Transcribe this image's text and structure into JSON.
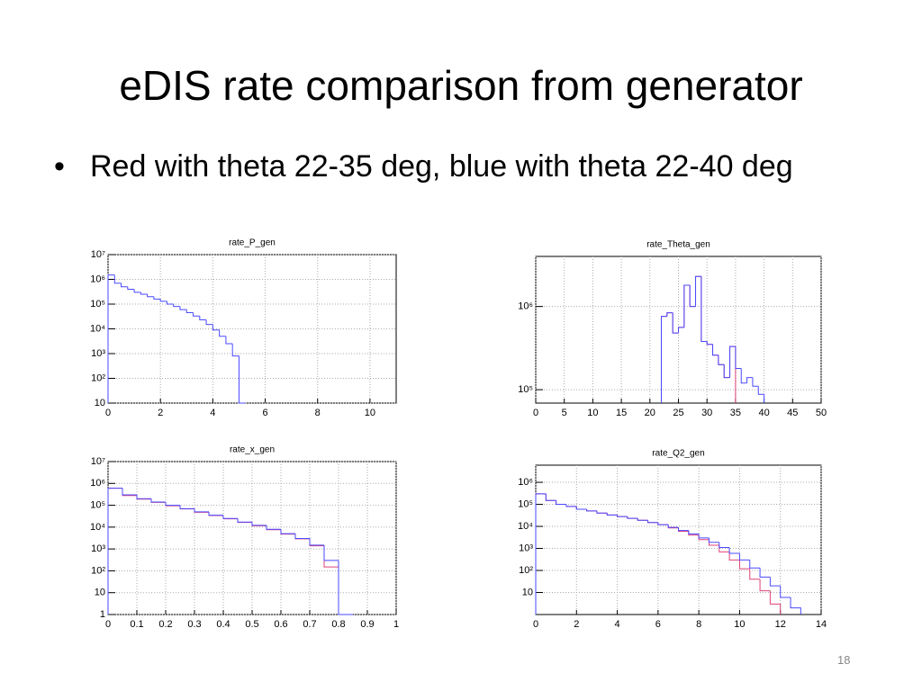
{
  "title": "eDIS rate comparison from generator",
  "bullet": "Red with theta 22-35 deg, blue with theta 22-40 deg",
  "page_number": "18",
  "chart_data": [
    {
      "type": "histogram",
      "title": "rate_P_gen",
      "log_y": true,
      "grid": true,
      "xlim": [
        0,
        11
      ],
      "xticks": [
        0,
        2,
        4,
        6,
        8,
        10
      ],
      "ylim": [
        10,
        10000000
      ],
      "yticks": [
        10,
        {
          "value": 100,
          "label": "10²"
        },
        {
          "value": 1000,
          "label": "10³"
        },
        {
          "value": 10000,
          "label": "10⁴"
        },
        {
          "value": 100000,
          "label": "10⁵"
        },
        {
          "value": 1000000,
          "label": "10⁶"
        },
        {
          "value": 10000000,
          "label": "10⁷"
        }
      ],
      "bins": [
        0,
        0.25,
        0.5,
        0.75,
        1,
        1.25,
        1.5,
        1.75,
        2,
        2.25,
        2.5,
        2.75,
        3,
        3.25,
        3.5,
        3.75,
        4,
        4.25,
        4.5,
        4.75,
        5,
        5.25
      ],
      "series": [
        {
          "color": "#4a4aff",
          "values": [
            1500000,
            700000,
            500000,
            400000,
            300000,
            250000,
            200000,
            160000,
            130000,
            100000,
            80000,
            60000,
            45000,
            33000,
            23000,
            15000,
            9000,
            5000,
            2500,
            800,
            10
          ]
        }
      ]
    },
    {
      "type": "histogram",
      "title": "rate_Theta_gen",
      "log_y": true,
      "grid": true,
      "xlim": [
        0,
        50
      ],
      "xticks": [
        0,
        5,
        10,
        15,
        20,
        25,
        30,
        35,
        40,
        45,
        50
      ],
      "ylim": [
        69000,
        4000000
      ],
      "yticks": [
        {
          "value": 100000,
          "label": "10⁵"
        },
        {
          "value": 1000000,
          "label": "10⁶"
        }
      ],
      "bins": [
        22,
        23,
        24,
        25,
        26,
        27,
        28,
        29,
        30,
        31,
        32,
        33,
        34,
        35,
        36,
        37,
        38,
        39,
        40
      ],
      "series": [
        {
          "color": "#e0407a",
          "values": [
            760000,
            840000,
            480000,
            560000,
            1800000,
            1000000,
            2300000,
            380000,
            350000,
            260000,
            200000,
            140000,
            330000,
            null,
            null,
            null,
            null,
            null
          ]
        },
        {
          "color": "#4a4aff",
          "values": [
            760000,
            840000,
            480000,
            560000,
            1800000,
            1000000,
            2300000,
            380000,
            350000,
            260000,
            200000,
            140000,
            330000,
            180000,
            120000,
            140000,
            110000,
            88000
          ]
        }
      ]
    },
    {
      "type": "histogram",
      "title": "rate_x_gen",
      "log_y": true,
      "grid": true,
      "xlim": [
        0,
        1
      ],
      "xticks": [
        0,
        0.1,
        0.2,
        0.3,
        0.4,
        0.5,
        0.6,
        0.7,
        0.8,
        0.9,
        1
      ],
      "ylim": [
        1,
        10000000
      ],
      "yticks": [
        1,
        10,
        {
          "value": 100,
          "label": "10²"
        },
        {
          "value": 1000,
          "label": "10³"
        },
        {
          "value": 10000,
          "label": "10⁴"
        },
        {
          "value": 100000,
          "label": "10⁵"
        },
        {
          "value": 1000000,
          "label": "10⁶"
        },
        {
          "value": 10000000,
          "label": "10⁷"
        }
      ],
      "bins": [
        0,
        0.05,
        0.1,
        0.15,
        0.2,
        0.25,
        0.3,
        0.35,
        0.4,
        0.45,
        0.5,
        0.55,
        0.6,
        0.65,
        0.7,
        0.75,
        0.8,
        0.85
      ],
      "series": [
        {
          "color": "#e0407a",
          "values": [
            600000,
            280000,
            190000,
            135000,
            95000,
            68000,
            48000,
            34000,
            24000,
            16500,
            11500,
            7600,
            4800,
            2900,
            1400,
            150,
            1
          ]
        },
        {
          "color": "#4a4aff",
          "values": [
            600000,
            300000,
            200000,
            140000,
            100000,
            70000,
            50000,
            35000,
            25000,
            17000,
            12000,
            8000,
            5000,
            3000,
            1500,
            300,
            1
          ]
        }
      ]
    },
    {
      "type": "histogram",
      "title": "rate_Q2_gen",
      "log_y": true,
      "grid": true,
      "xlim": [
        0,
        14
      ],
      "xticks": [
        0,
        2,
        4,
        6,
        8,
        10,
        12,
        14
      ],
      "ylim": [
        1,
        6000000
      ],
      "yticks": [
        10,
        {
          "value": 100,
          "label": "10²"
        },
        {
          "value": 1000,
          "label": "10³"
        },
        {
          "value": 10000,
          "label": "10⁴"
        },
        {
          "value": 100000,
          "label": "10⁵"
        },
        {
          "value": 1000000,
          "label": "10⁶"
        }
      ],
      "bins": [
        0,
        0.5,
        1,
        1.5,
        2,
        2.5,
        3,
        3.5,
        4,
        4.5,
        5,
        5.5,
        6,
        6.5,
        7,
        7.5,
        8,
        8.5,
        9,
        9.5,
        10,
        10.5,
        11,
        11.5,
        12,
        12.5,
        13
      ],
      "series": [
        {
          "color": "#e0407a",
          "values": [
            300000,
            150000,
            100000,
            80000,
            60000,
            50000,
            40000,
            33000,
            28000,
            23000,
            19000,
            15000,
            12000,
            8500,
            6000,
            4000,
            2500,
            1400,
            700,
            300,
            120,
            40,
            12,
            3,
            null,
            null
          ]
        },
        {
          "color": "#4a4aff",
          "values": [
            300000,
            150000,
            100000,
            80000,
            60000,
            50000,
            40000,
            33000,
            28000,
            23000,
            19000,
            15000,
            12000,
            9000,
            6500,
            4500,
            3000,
            1900,
            1100,
            600,
            300,
            130,
            50,
            20,
            6,
            2
          ]
        }
      ]
    }
  ]
}
